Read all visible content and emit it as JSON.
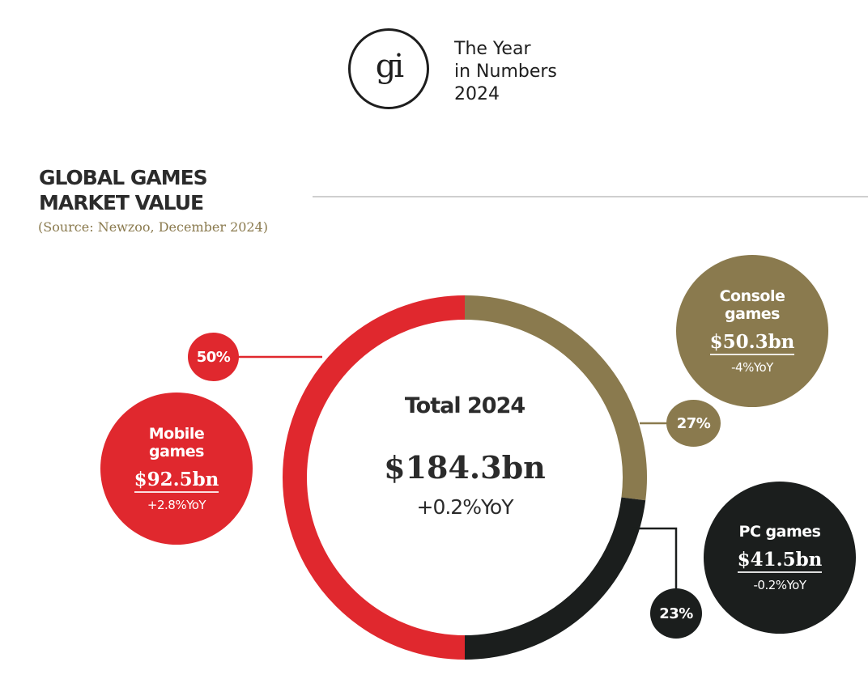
{
  "header": {
    "logo_text": "gi",
    "report_title_lines": [
      "The Year",
      "in Numbers",
      "2024"
    ]
  },
  "section": {
    "title_lines": [
      "GLOBAL GAMES",
      "MARKET VALUE"
    ],
    "source": "(Source: Newzoo, December 2024)"
  },
  "colors": {
    "mobile": "#e0282e",
    "console": "#8a7a4e",
    "pc": "#1b1e1d"
  },
  "chart_data": {
    "type": "pie",
    "center_label": "Total 2024",
    "total": "$184.3bn",
    "total_yoy": "+0.2%YoY",
    "segments": [
      {
        "name_lines": [
          "Console",
          "games"
        ],
        "value": "$50.3bn",
        "yoy": "-4%YoY",
        "percent": 27,
        "percent_label": "27%",
        "color": "#8a7a4e"
      },
      {
        "name_lines": [
          "PC games"
        ],
        "value": "$41.5bn",
        "yoy": "-0.2%YoY",
        "percent": 23,
        "percent_label": "23%",
        "color": "#1b1e1d"
      },
      {
        "name_lines": [
          "Mobile",
          "games"
        ],
        "value": "$92.5bn",
        "yoy": "+2.8%YoY",
        "percent": 50,
        "percent_label": "50%",
        "color": "#e0282e"
      }
    ]
  }
}
